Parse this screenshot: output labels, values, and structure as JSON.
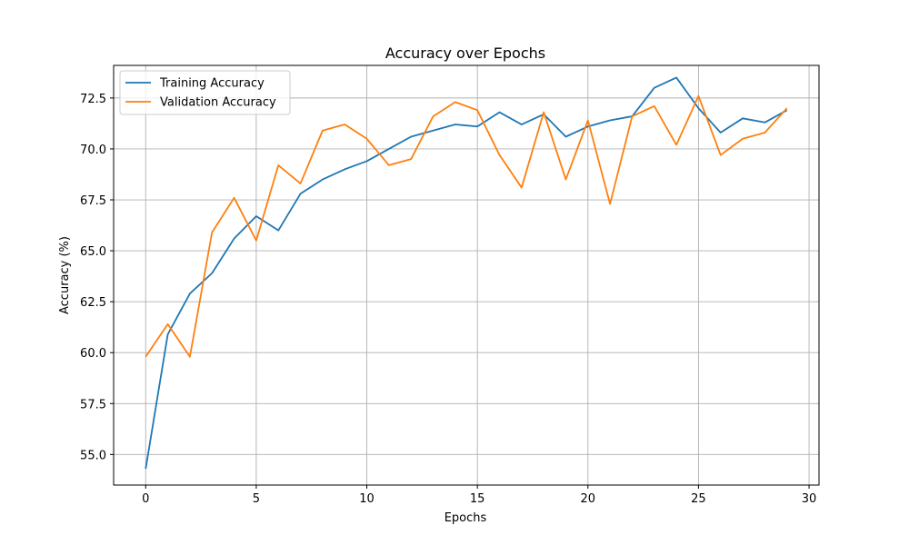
{
  "chart_data": {
    "type": "line",
    "title": "Accuracy over Epochs",
    "xlabel": "Epochs",
    "ylabel": "Accuracy (%)",
    "xlim": [
      -1.45,
      30.45
    ],
    "ylim": [
      53.5,
      74.1
    ],
    "xticks": [
      0,
      5,
      10,
      15,
      20,
      25,
      30
    ],
    "yticks": [
      55.0,
      57.5,
      60.0,
      62.5,
      65.0,
      67.5,
      70.0,
      72.5
    ],
    "ytick_labels": [
      "55.0",
      "57.5",
      "60.0",
      "62.5",
      "65.0",
      "67.5",
      "70.0",
      "72.5"
    ],
    "grid": true,
    "legend_position": "upper-left",
    "x": [
      0,
      1,
      2,
      3,
      4,
      5,
      6,
      7,
      8,
      9,
      10,
      11,
      12,
      13,
      14,
      15,
      16,
      17,
      18,
      19,
      20,
      21,
      22,
      23,
      24,
      25,
      26,
      27,
      28,
      29
    ],
    "series": [
      {
        "name": "Training Accuracy",
        "color": "#1f77b4",
        "values": [
          54.3,
          60.9,
          62.9,
          63.9,
          65.6,
          66.7,
          66.0,
          67.8,
          68.5,
          69.0,
          69.4,
          70.0,
          70.6,
          70.9,
          71.2,
          71.1,
          71.8,
          71.2,
          71.7,
          70.6,
          71.1,
          71.4,
          71.6,
          73.0,
          73.5,
          72.0,
          70.8,
          71.5,
          71.3,
          71.9
        ]
      },
      {
        "name": "Validation Accuracy",
        "color": "#ff7f0e",
        "values": [
          59.8,
          61.4,
          59.8,
          65.9,
          67.6,
          65.5,
          69.2,
          68.3,
          70.9,
          71.2,
          70.5,
          69.2,
          69.5,
          71.6,
          72.3,
          71.9,
          69.7,
          68.1,
          71.8,
          68.5,
          71.4,
          67.3,
          71.6,
          72.1,
          70.2,
          72.6,
          69.7,
          70.5,
          70.8,
          72.0
        ]
      }
    ]
  }
}
